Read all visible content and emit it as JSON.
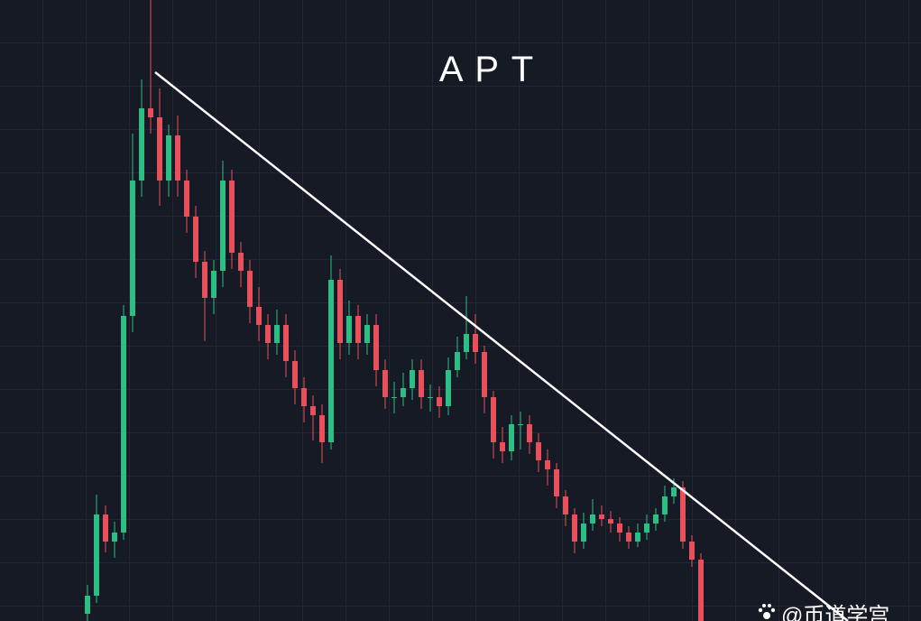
{
  "chart_data": {
    "type": "candlestick",
    "title": "A P T",
    "watermark": "@币道学宫",
    "up_color": "#2ebd85",
    "down_color": "#e8505b",
    "ylim": [
      0,
      688
    ],
    "open": [
      8,
      28,
      118,
      88,
      98,
      338,
      488,
      568,
      558,
      488,
      538,
      488,
      448,
      398,
      358,
      388,
      488,
      408,
      388,
      348,
      328,
      308,
      328,
      288,
      258,
      238,
      228,
      198,
      378,
      308,
      338,
      308,
      328,
      278,
      248,
      248,
      258,
      278,
      248,
      248,
      238,
      278,
      298,
      318,
      298,
      248,
      198,
      188,
      218,
      218,
      198,
      178,
      168,
      138,
      118,
      88,
      108,
      118,
      113,
      108,
      98,
      88,
      98,
      108,
      118,
      138,
      148,
      88,
      68
    ],
    "high": [
      40,
      140,
      128,
      110,
      350,
      540,
      600,
      688,
      590,
      550,
      560,
      500,
      460,
      410,
      400,
      510,
      500,
      420,
      400,
      370,
      340,
      345,
      340,
      300,
      270,
      250,
      240,
      405,
      390,
      355,
      350,
      340,
      340,
      290,
      265,
      275,
      290,
      290,
      262,
      260,
      292,
      315,
      360,
      340,
      305,
      255,
      215,
      228,
      232,
      228,
      208,
      190,
      175,
      145,
      125,
      120,
      135,
      128,
      122,
      115,
      105,
      108,
      118,
      125,
      150,
      158,
      155,
      95,
      75
    ],
    "low": [
      0,
      20,
      76,
      70,
      90,
      320,
      470,
      540,
      460,
      470,
      470,
      430,
      380,
      310,
      340,
      370,
      390,
      370,
      330,
      310,
      290,
      295,
      270,
      240,
      220,
      200,
      175,
      190,
      290,
      295,
      290,
      295,
      260,
      235,
      230,
      238,
      245,
      235,
      232,
      225,
      228,
      270,
      290,
      285,
      230,
      180,
      175,
      178,
      190,
      185,
      165,
      150,
      125,
      105,
      75,
      80,
      100,
      105,
      98,
      88,
      80,
      82,
      90,
      100,
      110,
      130,
      80,
      60,
      0
    ],
    "close": [
      28,
      118,
      88,
      98,
      338,
      488,
      568,
      558,
      488,
      538,
      488,
      448,
      398,
      358,
      388,
      488,
      408,
      388,
      348,
      328,
      308,
      328,
      288,
      258,
      238,
      228,
      198,
      378,
      308,
      338,
      308,
      328,
      278,
      248,
      248,
      258,
      278,
      248,
      248,
      238,
      278,
      298,
      318,
      298,
      248,
      198,
      188,
      218,
      218,
      198,
      178,
      168,
      138,
      118,
      88,
      108,
      118,
      113,
      108,
      98,
      88,
      98,
      108,
      118,
      138,
      148,
      88,
      68,
      0
    ]
  }
}
